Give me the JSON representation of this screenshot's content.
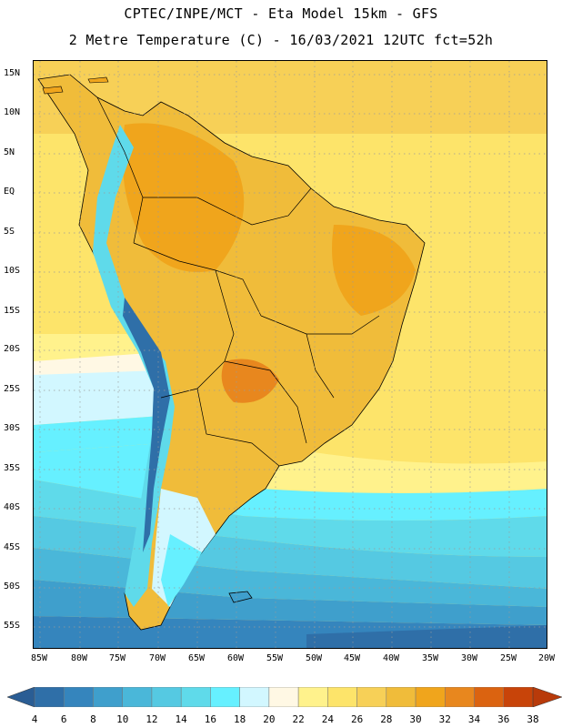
{
  "header": {
    "line1": "CPTEC/INPE/MCT -  Eta Model 15km - GFS",
    "line2": "2 Metre Temperature (C) - 16/03/2021 12UTC fct=52h"
  },
  "map": {
    "lat_labels": [
      "15N",
      "10N",
      "5N",
      "EQ",
      "5S",
      "10S",
      "15S",
      "20S",
      "25S",
      "30S",
      "35S",
      "40S",
      "45S",
      "50S",
      "55S"
    ],
    "lon_labels": [
      "85W",
      "80W",
      "75W",
      "70W",
      "65W",
      "60W",
      "55W",
      "50W",
      "45W",
      "40W",
      "35W",
      "30W",
      "25W",
      "20W"
    ]
  },
  "colorbar": {
    "labels": [
      "4",
      "6",
      "8",
      "10",
      "12",
      "14",
      "16",
      "18",
      "20",
      "22",
      "24",
      "26",
      "28",
      "30",
      "32",
      "34",
      "36",
      "38"
    ],
    "colors": [
      "#2f6fa8",
      "#3585bd",
      "#3f9fcc",
      "#4ab7d9",
      "#55c9e2",
      "#5fdaea",
      "#66f0ff",
      "#d2f7ff",
      "#fff8e4",
      "#fff28c",
      "#fde46a",
      "#f7d057",
      "#f0bc3a",
      "#f0a51c",
      "#e8871e",
      "#db6310",
      "#c84409",
      "#b83a0a"
    ],
    "left_end_color": "#2a5d94",
    "right_end_color": "#b83a0a"
  },
  "colors": {
    "ocean_deep": "#2f6fa8",
    "ocean_mid": "#4ab7d9",
    "ocean_light": "#66f0ff",
    "land_warm": "#f0bc3a",
    "land_hot": "#f0a51c",
    "ocean_warm": "#fde46a",
    "border": "#000000",
    "grid": "#9a9a9a"
  }
}
